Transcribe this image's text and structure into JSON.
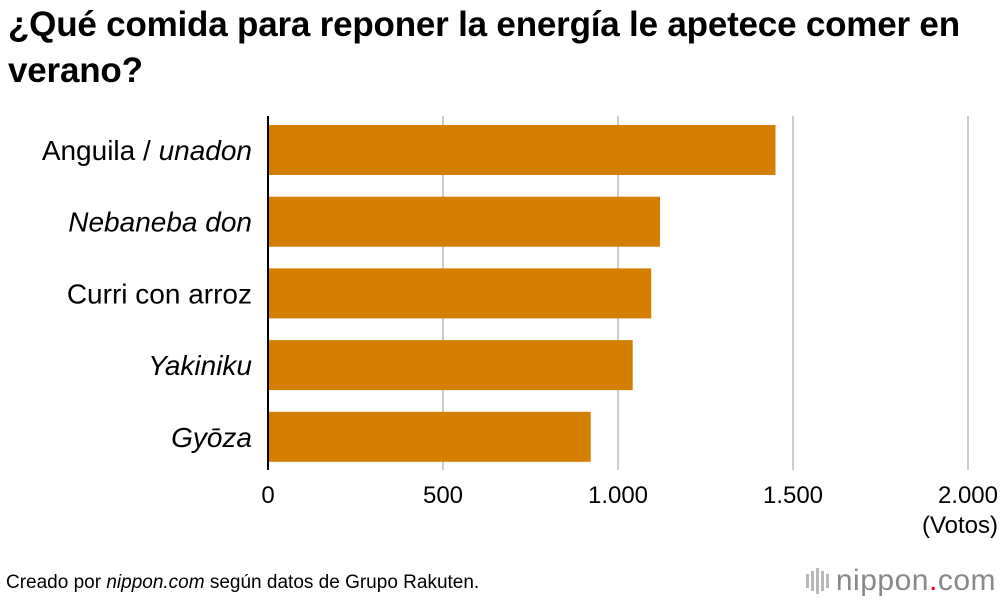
{
  "chart_data": {
    "type": "bar",
    "orientation": "horizontal",
    "title": "¿Qué comida para reponer la energía le apetece comer en verano?",
    "categories": [
      {
        "text": "Anguila / ",
        "italic_text": "unadon"
      },
      {
        "text": "",
        "italic_text": "Nebaneba don"
      },
      {
        "text": "Curri con arroz",
        "italic_text": ""
      },
      {
        "text": "",
        "italic_text": "Yakiniku"
      },
      {
        "text": "",
        "italic_text": "Gyōza"
      }
    ],
    "values": [
      1450,
      1120,
      1095,
      1042,
      922
    ],
    "xlim": [
      0,
      2000
    ],
    "ticks": [
      0,
      500,
      1000,
      1500,
      2000
    ],
    "tick_labels": [
      "0",
      "500",
      "1.000",
      "1.500",
      "2.000"
    ],
    "unit_label": "(Votos)",
    "bar_color": "#d47f00",
    "grid": true,
    "grid_color": "#cccccc"
  },
  "footer": {
    "prefix": "Creado por ",
    "source_italic": "nippon.com",
    "suffix": " según datos de Grupo Rakuten."
  },
  "logo": {
    "name": "nippon",
    "dot": ".",
    "tld": "com",
    "dot_color": "#e60012"
  }
}
